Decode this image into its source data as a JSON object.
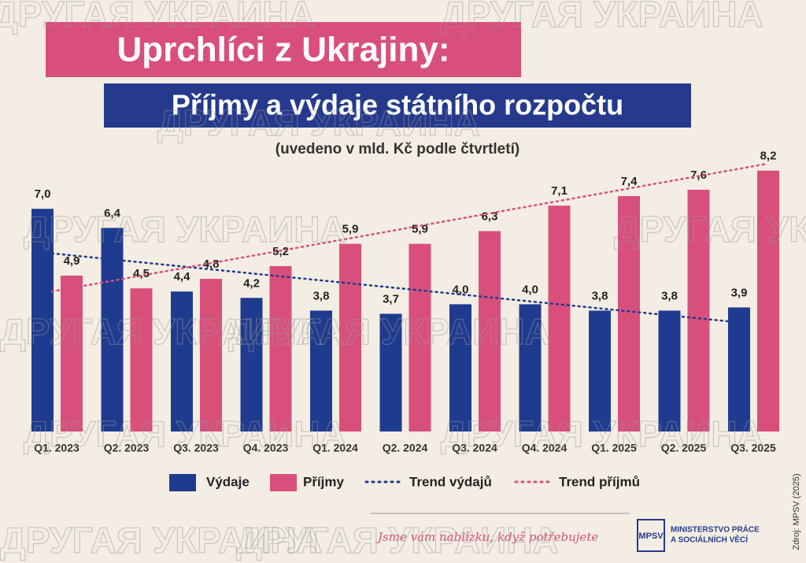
{
  "watermark": "ДРУГАЯ УКРАИНА",
  "chart_data": {
    "type": "bar",
    "title": "Uprchlíci z Ukrajiny:",
    "subtitle": "Příjmy a výdaje státního rozpočtu",
    "note": "(uvedeno v mld. Kč podle čtvrtletí)",
    "categories": [
      "Q1. 2023",
      "Q2. 2023",
      "Q3. 2023",
      "Q4. 2023",
      "Q1. 2024",
      "Q2. 2024",
      "Q3. 2024",
      "Q4. 2024",
      "Q1. 2025",
      "Q2. 2025",
      "Q3. 2025"
    ],
    "series": [
      {
        "name": "Výdaje",
        "color": "#1f3b8f",
        "values": [
          7.0,
          6.4,
          4.4,
          4.2,
          3.8,
          3.7,
          4.0,
          4.0,
          3.8,
          3.8,
          3.9
        ],
        "value_labels": [
          "7,0",
          "6,4",
          "4,4",
          "4,2",
          "3,8",
          "3,7",
          "4,0",
          "4,0",
          "3,8",
          "3,8",
          "3,9"
        ]
      },
      {
        "name": "Příjmy",
        "color": "#d94f7c",
        "values": [
          4.9,
          4.5,
          4.8,
          5.2,
          5.9,
          5.9,
          6.3,
          7.1,
          7.4,
          7.6,
          8.2
        ],
        "value_labels": [
          "4,9",
          "4,5",
          "4,8",
          "5,2",
          "5,9",
          "5,9",
          "6,3",
          "7,1",
          "7,4",
          "7,6",
          "8,2"
        ]
      }
    ],
    "trends": [
      {
        "name": "Trend výdajů",
        "color": "#1f3b8f",
        "values": [
          5.6,
          3.4
        ]
      },
      {
        "name": "Trend příjmů",
        "color": "#d94f7c",
        "values": [
          4.4,
          8.4
        ]
      }
    ],
    "source": "Zdroj: MPSV (2025)"
  },
  "footer": {
    "slogan": "Jsme vám nablízku, když potřebujete",
    "logo": "MPSV",
    "ministry": [
      "MINISTERSTVO PRÁCE",
      "A SOCIÁLNÍCH VĚCÍ"
    ]
  }
}
